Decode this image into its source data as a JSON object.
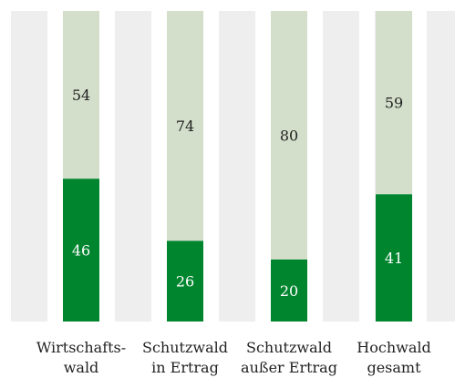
{
  "chart_data": {
    "type": "bar",
    "stacked": true,
    "categories": [
      [
        "Wirtschafts-",
        "wald"
      ],
      [
        "Schutzwald",
        "in Ertrag"
      ],
      [
        "Schutzwald",
        "außer Ertrag"
      ],
      [
        "Hochwald",
        "gesamt"
      ]
    ],
    "series": [
      {
        "values": [
          46,
          26,
          20,
          41
        ],
        "color": "#00852f"
      },
      {
        "values": [
          54,
          74,
          80,
          59
        ],
        "color": "#d3dfca"
      }
    ],
    "ylim": [
      0,
      100
    ],
    "background_band_color": "#eeeeee",
    "grid": false,
    "legend": "none"
  }
}
